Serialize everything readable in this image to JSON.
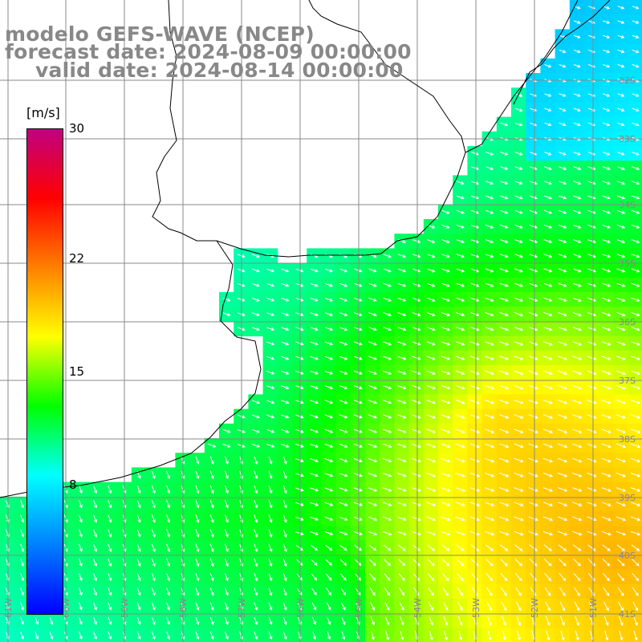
{
  "titles": {
    "line1": "modelo GEFS-WAVE (NCEP)",
    "line2": "forecast date: 2024-08-09 00:00:00",
    "line3": "valid date: 2024-08-14 00:00:00"
  },
  "colorbar": {
    "unit": "[m/s]",
    "ticks": [
      {
        "value": 30,
        "label": "30"
      },
      {
        "value": 22,
        "label": "22"
      },
      {
        "value": 15,
        "label": "15"
      },
      {
        "value": 8,
        "label": "8"
      }
    ],
    "range": [
      0,
      30
    ],
    "colors": [
      "#0000ff",
      "#0080ff",
      "#00ffff",
      "#00ff00",
      "#ffff00",
      "#ff8000",
      "#ff0000",
      "#c00080"
    ]
  },
  "latitude_labels": [
    "32S",
    "33S",
    "34S",
    "35S",
    "36S",
    "37S",
    "38S",
    "39S",
    "40S",
    "41S"
  ],
  "longitude_labels": [
    "61W",
    "60W",
    "59W",
    "58W",
    "57W",
    "56W",
    "55W",
    "54W",
    "53W",
    "52W",
    "51W"
  ],
  "map": {
    "background_color": "#ffffff",
    "grid_color": "#888888",
    "coast_color": "#000000",
    "arrow_color": "#ffffff"
  }
}
